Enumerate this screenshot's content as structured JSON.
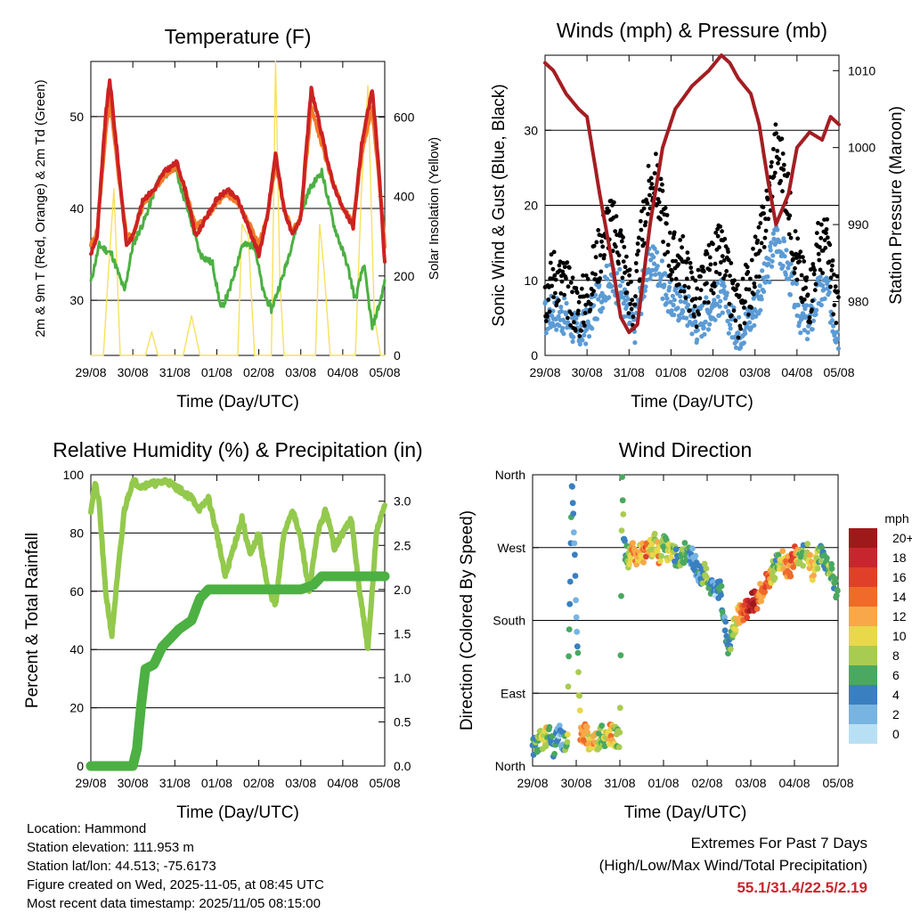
{
  "colors": {
    "temp_2m": "#cc2222",
    "temp_9m": "#f07c2a",
    "dewpoint": "#4cb043",
    "solar": "#f7e15d",
    "wind": "#5b9bd5",
    "gust": "#000000",
    "pressure": "#a31e22",
    "rh": "#93c94c",
    "precip": "#4cb043",
    "extremes": "#c8262e"
  },
  "x_ticks": [
    "29/08",
    "30/08",
    "31/08",
    "01/08",
    "02/08",
    "03/08",
    "04/08",
    "05/08"
  ],
  "x_label": "Time (Day/UTC)",
  "chart_data": [
    {
      "type": "line",
      "title": "Temperature (F)",
      "ylabel_left": "2m & 9m T (Red, Orange) & 2m Td (Green)",
      "ylabel_right": "Solar Insolation (Yellow)",
      "xlabel": "Time (Day/UTC)",
      "x_range": [
        0,
        7
      ],
      "ylim": [
        24,
        56
      ],
      "ylim_right": [
        0,
        740
      ],
      "yticks": [
        30,
        40,
        50
      ],
      "yticks_right": [
        0,
        200,
        400,
        600
      ],
      "series": [
        {
          "name": "2m T",
          "axis": "left",
          "color": "#cc2222",
          "x": [
            0,
            0.15,
            0.35,
            0.45,
            0.65,
            0.85,
            1.0,
            1.25,
            1.5,
            1.75,
            2.05,
            2.25,
            2.5,
            2.75,
            3.0,
            3.25,
            3.5,
            3.75,
            4.0,
            4.2,
            4.4,
            4.6,
            4.8,
            5.0,
            5.25,
            5.5,
            5.75,
            6.0,
            6.25,
            6.45,
            6.7,
            6.85,
            7.0
          ],
          "values": [
            35,
            37,
            50,
            54,
            45,
            36,
            37,
            41,
            42,
            44,
            45,
            42,
            37,
            39,
            41,
            42,
            41,
            38,
            35,
            39,
            46,
            40,
            37,
            39,
            53,
            48,
            43,
            40,
            38,
            47,
            53,
            45,
            34
          ]
        },
        {
          "name": "9m T",
          "axis": "left",
          "color": "#f07c2a",
          "x": [
            0,
            0.15,
            0.35,
            0.45,
            0.65,
            0.85,
            1.0,
            1.25,
            1.5,
            1.75,
            2.05,
            2.25,
            2.5,
            2.75,
            3.0,
            3.25,
            3.5,
            3.75,
            4.0,
            4.2,
            4.4,
            4.6,
            4.8,
            5.0,
            5.25,
            5.5,
            5.75,
            6.0,
            6.25,
            6.45,
            6.7,
            6.85,
            7.0
          ],
          "values": [
            36,
            37.5,
            48,
            52,
            44,
            37,
            37,
            40.5,
            42,
            43.5,
            44.5,
            42,
            38,
            39,
            40.5,
            41.5,
            40.5,
            38.5,
            36,
            39,
            45,
            40,
            37.5,
            39,
            51,
            47,
            43,
            40,
            38.5,
            46,
            51,
            44,
            36
          ]
        },
        {
          "name": "2m Td",
          "axis": "left",
          "color": "#4cb043",
          "x": [
            0,
            0.2,
            0.5,
            0.8,
            1.0,
            1.3,
            1.6,
            2.0,
            2.3,
            2.6,
            2.9,
            3.1,
            3.3,
            3.6,
            3.9,
            4.1,
            4.3,
            4.6,
            4.9,
            5.2,
            5.5,
            5.8,
            6.1,
            6.3,
            6.5,
            6.7,
            6.9,
            7.0
          ],
          "values": [
            32,
            36,
            35,
            31,
            36,
            39,
            43,
            44.5,
            40,
            35,
            34,
            29,
            31,
            36,
            36,
            31,
            29,
            33,
            38,
            42,
            44,
            38,
            34,
            30,
            34,
            27,
            30,
            32
          ]
        },
        {
          "name": "Solar Insolation",
          "axis": "right",
          "color": "#f7e15d",
          "x": [
            0,
            0.3,
            0.4,
            0.55,
            0.7,
            1.0,
            1.3,
            1.45,
            1.6,
            2.2,
            2.4,
            2.6,
            3.0,
            3.5,
            3.6,
            3.75,
            3.9,
            4.3,
            4.4,
            4.5,
            4.6,
            5.0,
            5.35,
            5.45,
            5.55,
            5.7,
            6.0,
            6.3,
            6.45,
            6.6,
            6.75,
            6.9,
            7.0
          ],
          "values": [
            0,
            0,
            180,
            420,
            0,
            0,
            0,
            60,
            0,
            0,
            100,
            0,
            0,
            0,
            330,
            300,
            0,
            0,
            740,
            200,
            0,
            0,
            0,
            330,
            220,
            0,
            0,
            0,
            430,
            680,
            100,
            0,
            0
          ]
        }
      ]
    },
    {
      "type": "line",
      "title": "Winds (mph) & Pressure (mb)",
      "ylabel_left": "Sonic Wind & Gust (Blue, Black)",
      "ylabel_right": "Station Pressure (Maroon)",
      "xlabel": "Time (Day/UTC)",
      "x_range": [
        0,
        7
      ],
      "ylim": [
        0,
        40
      ],
      "ylim_right": [
        973,
        1012
      ],
      "yticks": [
        0,
        10,
        20,
        30
      ],
      "yticks_right": [
        980,
        990,
        1000,
        1010
      ],
      "series": [
        {
          "name": "Gust",
          "axis": "left",
          "color": "#000000",
          "x": [
            0,
            0.2,
            0.5,
            0.8,
            1.0,
            1.3,
            1.5,
            1.8,
            2.1,
            2.4,
            2.6,
            2.8,
            3.0,
            3.3,
            3.6,
            3.9,
            4.2,
            4.4,
            4.6,
            4.9,
            5.1,
            5.3,
            5.5,
            5.7,
            5.9,
            6.1,
            6.3,
            6.5,
            6.7,
            6.9,
            7.0
          ],
          "values": [
            8,
            11,
            9,
            6,
            8,
            14,
            18,
            15,
            6,
            20,
            24,
            19,
            13,
            12,
            7,
            11,
            14,
            9,
            6,
            10,
            14,
            20,
            28,
            24,
            16,
            10,
            8,
            14,
            15,
            8,
            6
          ]
        },
        {
          "name": "Wind",
          "axis": "left",
          "color": "#5b9bd5",
          "x": [
            0,
            0.2,
            0.5,
            0.8,
            1.0,
            1.3,
            1.5,
            1.8,
            2.1,
            2.4,
            2.6,
            2.8,
            3.0,
            3.3,
            3.6,
            3.9,
            4.2,
            4.4,
            4.6,
            4.9,
            5.1,
            5.3,
            5.5,
            5.7,
            5.9,
            6.1,
            6.3,
            6.5,
            6.7,
            6.9,
            7.0
          ],
          "values": [
            5,
            6,
            5,
            3,
            4,
            8,
            10,
            9,
            3,
            11,
            13,
            10,
            7,
            7,
            4,
            6,
            8,
            5,
            3,
            5,
            8,
            11,
            16,
            13,
            9,
            5,
            4,
            8,
            9,
            4,
            3
          ]
        },
        {
          "name": "Station Pressure",
          "axis": "right",
          "color": "#a31e22",
          "x": [
            0,
            0.2,
            0.5,
            0.8,
            1.0,
            1.3,
            1.6,
            1.8,
            2.0,
            2.2,
            2.5,
            2.8,
            3.1,
            3.5,
            3.9,
            4.2,
            4.4,
            4.6,
            4.9,
            5.1,
            5.3,
            5.5,
            5.8,
            6.0,
            6.3,
            6.6,
            6.8,
            7.0
          ],
          "values": [
            1011,
            1010,
            1007,
            1005,
            1004,
            994,
            985,
            978,
            976,
            977,
            990,
            1000,
            1005,
            1008,
            1010,
            1012,
            1011,
            1009,
            1007,
            1003,
            996,
            990,
            994,
            1000,
            1002,
            1001,
            1004,
            1003
          ]
        }
      ]
    },
    {
      "type": "line",
      "title": "Relative Humidity (%) & Precipitation (in)",
      "ylabel_left": "Percent & Total Rainfall",
      "xlabel": "Time (Day/UTC)",
      "x_range": [
        0,
        7
      ],
      "ylim": [
        0,
        100
      ],
      "ylim_right": [
        0,
        3.3
      ],
      "yticks": [
        0,
        20,
        40,
        60,
        80,
        100
      ],
      "yticks_right": [
        "0.0",
        "0.5",
        "1.0",
        "1.5",
        "2.0",
        "2.5",
        "3.0"
      ],
      "series": [
        {
          "name": "Relative Humidity",
          "axis": "left",
          "color": "#93c94c",
          "x": [
            0,
            0.1,
            0.2,
            0.35,
            0.5,
            0.6,
            0.8,
            1.0,
            1.2,
            1.4,
            1.6,
            1.8,
            2.0,
            2.2,
            2.4,
            2.6,
            2.8,
            3.0,
            3.2,
            3.4,
            3.6,
            3.8,
            4.0,
            4.2,
            4.4,
            4.6,
            4.8,
            5.0,
            5.2,
            5.4,
            5.6,
            5.8,
            6.0,
            6.2,
            6.4,
            6.6,
            6.8,
            7.0
          ],
          "values": [
            88,
            97,
            90,
            60,
            45,
            60,
            88,
            98,
            96,
            97,
            97,
            98,
            96,
            94,
            92,
            88,
            92,
            80,
            65,
            75,
            85,
            72,
            80,
            62,
            55,
            80,
            88,
            78,
            60,
            80,
            88,
            75,
            80,
            85,
            60,
            40,
            80,
            90
          ]
        },
        {
          "name": "Total Rainfall",
          "axis": "right",
          "color": "#4cb043",
          "x": [
            0,
            0.5,
            1.0,
            1.1,
            1.2,
            1.3,
            1.5,
            1.7,
            1.9,
            2.1,
            2.4,
            2.6,
            2.8,
            3.0,
            3.2,
            4.0,
            4.5,
            5.0,
            5.3,
            5.5,
            6.0,
            6.5,
            7.0
          ],
          "values": [
            0,
            0,
            0,
            0.2,
            0.7,
            1.1,
            1.15,
            1.35,
            1.45,
            1.55,
            1.65,
            1.9,
            2.0,
            2.0,
            2.0,
            2.0,
            2.0,
            2.0,
            2.05,
            2.15,
            2.15,
            2.15,
            2.15
          ]
        }
      ]
    },
    {
      "type": "scatter",
      "title": "Wind Direction",
      "ylabel": "Direction (Colored By Speed)",
      "xlabel": "Time (Day/UTC)",
      "x_range": [
        0,
        7
      ],
      "ylim": [
        0,
        360
      ],
      "ytick_labels": [
        "North",
        "East",
        "South",
        "West",
        "North"
      ],
      "yticks": [
        0,
        90,
        180,
        270,
        360
      ],
      "colorbar_unit": "mph",
      "colorbar_labels": [
        "20+",
        "18",
        "16",
        "14",
        "12",
        "10",
        "8",
        "6",
        "4",
        "2",
        "0"
      ],
      "colorbar_colors": [
        "#9e1a1a",
        "#c8262e",
        "#e0402a",
        "#f06a2a",
        "#f8a848",
        "#e8d84a",
        "#a8cc52",
        "#4aa860",
        "#3a7fc0",
        "#78b4e2",
        "#b8e0f4"
      ],
      "x": [
        0,
        0.1,
        0.2,
        0.3,
        0.4,
        0.5,
        0.6,
        0.7,
        0.8,
        0.9,
        1.0,
        1.1,
        1.2,
        1.3,
        1.4,
        1.5,
        1.6,
        1.7,
        1.8,
        1.9,
        2.0,
        2.05,
        2.1,
        2.2,
        2.3,
        2.4,
        2.5,
        2.6,
        2.7,
        2.8,
        2.9,
        3.0,
        3.1,
        3.2,
        3.3,
        3.4,
        3.5,
        3.6,
        3.7,
        3.8,
        3.9,
        4.0,
        4.1,
        4.2,
        4.3,
        4.4,
        4.5,
        4.6,
        4.7,
        4.8,
        4.9,
        5.0,
        5.1,
        5.2,
        5.3,
        5.4,
        5.5,
        5.6,
        5.7,
        5.8,
        5.9,
        6.0,
        6.1,
        6.2,
        6.3,
        6.4,
        6.5,
        6.6,
        6.7,
        6.8,
        6.9,
        7.0
      ],
      "values": [
        25,
        28,
        32,
        35,
        40,
        20,
        45,
        30,
        35,
        358,
        200,
        38,
        42,
        30,
        35,
        32,
        38,
        35,
        40,
        36,
        30,
        350,
        270,
        255,
        265,
        258,
        262,
        265,
        270,
        275,
        260,
        275,
        265,
        270,
        255,
        260,
        265,
        258,
        255,
        240,
        235,
        240,
        220,
        212,
        225,
        175,
        145,
        170,
        185,
        190,
        195,
        200,
        205,
        210,
        225,
        230,
        240,
        250,
        255,
        248,
        245,
        260,
        255,
        260,
        270,
        240,
        250,
        265,
        255,
        245,
        230,
        210
      ],
      "speeds": [
        4,
        6,
        8,
        10,
        6,
        4,
        2,
        4,
        8,
        4,
        2,
        12,
        14,
        10,
        12,
        8,
        6,
        10,
        12,
        8,
        6,
        8,
        4,
        8,
        14,
        12,
        10,
        14,
        10,
        8,
        12,
        6,
        8,
        10,
        4,
        6,
        8,
        4,
        2,
        4,
        6,
        8,
        4,
        2,
        6,
        4,
        6,
        8,
        10,
        14,
        16,
        20,
        18,
        12,
        14,
        16,
        8,
        6,
        10,
        12,
        14,
        16,
        8,
        6,
        10,
        12,
        8,
        6,
        4,
        8,
        6,
        4
      ]
    }
  ],
  "footer": {
    "location": "Location: Hammond",
    "elevation": "Station elevation: 111.953 m",
    "latlon": "Station lat/lon: 44.513; -75.6173",
    "created": "Figure created on Wed, 2025-11-05, at 08:45 UTC",
    "recent": "Most recent data timestamp: 2025/11/05 08:15:00",
    "extremes_title": "Extremes For Past 7 Days",
    "extremes_sub": "(High/Low/Max Wind/Total Precipitation)",
    "extremes_values": "55.1/31.4/22.5/2.19"
  }
}
